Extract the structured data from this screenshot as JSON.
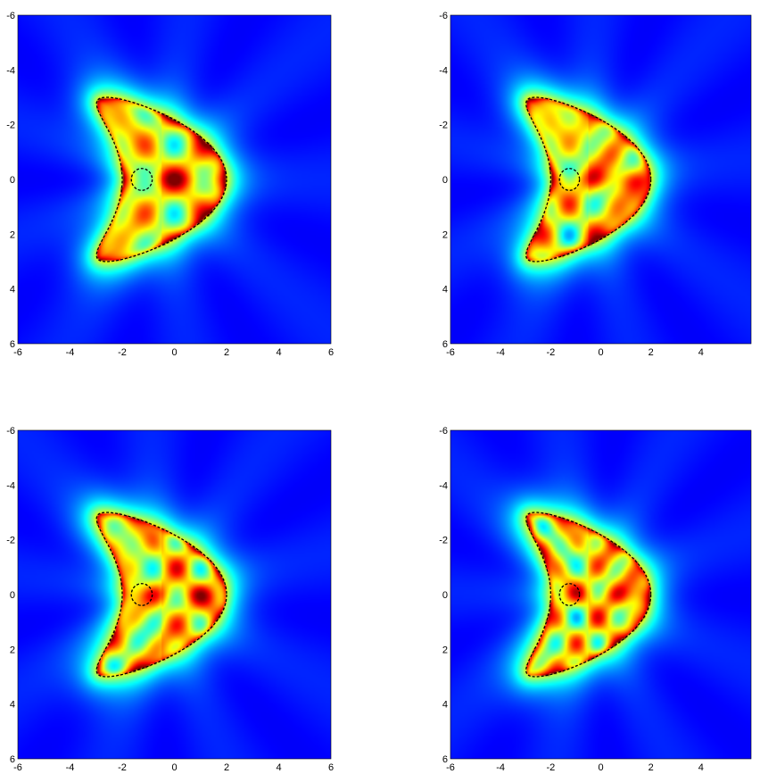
{
  "chart_data": [
    {
      "type": "heatmap",
      "title": "",
      "xlabel": "",
      "ylabel": "",
      "xlim": [
        -6,
        6
      ],
      "ylim": [
        -6,
        6
      ],
      "y_inverted": true,
      "xticks": [
        -6,
        -4,
        -2,
        0,
        2,
        4,
        6
      ],
      "xtick_labels": [
        "-6",
        "-4",
        "-2",
        "0",
        "2",
        "4",
        "6"
      ],
      "yticks": [
        -6,
        -4,
        -2,
        0,
        2,
        4,
        6
      ],
      "ytick_labels": [
        "-6",
        "-4",
        "-2",
        "0",
        "2",
        "4",
        "6"
      ],
      "colormap": "jet",
      "overlays": {
        "kite_boundary": {
          "style": "dashed",
          "color": "#000000",
          "parametric": "x = cos(t) + 0.65 cos(2t) - 0.65, y = 1.5 sin(t)",
          "scaled_by": 2
        },
        "inner_circle": {
          "style": "dashed",
          "color": "#000000",
          "center": [
            -1.25,
            0
          ],
          "radius": 0.4
        }
      },
      "grid": false
    },
    {
      "type": "heatmap",
      "title": "",
      "xlabel": "",
      "ylabel": "",
      "xlim": [
        -6,
        6
      ],
      "ylim": [
        -6,
        6
      ],
      "y_inverted": true,
      "xticks": [
        -6,
        -4,
        -2,
        0,
        2,
        4
      ],
      "xtick_labels": [
        "-6",
        "-4",
        "-2",
        "0",
        "2",
        "4"
      ],
      "yticks": [
        -6,
        -4,
        -2,
        0,
        2,
        4,
        6
      ],
      "ytick_labels": [
        "-6",
        "-4",
        "-2",
        "0",
        "2",
        "4",
        "6"
      ],
      "colormap": "jet",
      "overlays": {
        "kite_boundary": {
          "style": "dashed",
          "color": "#000000"
        },
        "inner_circle": {
          "style": "dashed",
          "color": "#000000",
          "center": [
            -1.25,
            0
          ],
          "radius": 0.4
        }
      },
      "grid": false
    },
    {
      "type": "heatmap",
      "title": "",
      "xlabel": "",
      "ylabel": "",
      "xlim": [
        -6,
        6
      ],
      "ylim": [
        -6,
        6
      ],
      "y_inverted": true,
      "xticks": [
        -6,
        -4,
        -2,
        0,
        2,
        4,
        6
      ],
      "xtick_labels": [
        "-6",
        "-4",
        "-2",
        "0",
        "2",
        "4",
        "6"
      ],
      "yticks": [
        -6,
        -4,
        -2,
        0,
        2,
        4,
        6
      ],
      "ytick_labels": [
        "-6",
        "-4",
        "-2",
        "0",
        "2",
        "4",
        "6"
      ],
      "colormap": "jet",
      "overlays": {
        "kite_boundary": {
          "style": "dashed",
          "color": "#000000"
        },
        "inner_circle": {
          "style": "dashed",
          "color": "#000000",
          "center": [
            -1.25,
            0
          ],
          "radius": 0.4
        }
      },
      "grid": false
    },
    {
      "type": "heatmap",
      "title": "",
      "xlabel": "",
      "ylabel": "",
      "xlim": [
        -6,
        6
      ],
      "ylim": [
        -6,
        6
      ],
      "y_inverted": true,
      "xticks": [
        -6,
        -4,
        -2,
        0,
        2,
        4
      ],
      "xtick_labels": [
        "-6",
        "-4",
        "-2",
        "0",
        "2",
        "4"
      ],
      "yticks": [
        -6,
        -4,
        -2,
        0,
        2,
        4,
        6
      ],
      "ytick_labels": [
        "-6",
        "-4",
        "-2",
        "0",
        "2",
        "4",
        "6"
      ],
      "colormap": "jet",
      "overlays": {
        "kite_boundary": {
          "style": "dashed",
          "color": "#000000"
        },
        "inner_circle": {
          "style": "dashed",
          "color": "#000000",
          "center": [
            -1.25,
            0
          ],
          "radius": 0.4
        }
      },
      "grid": false
    }
  ]
}
